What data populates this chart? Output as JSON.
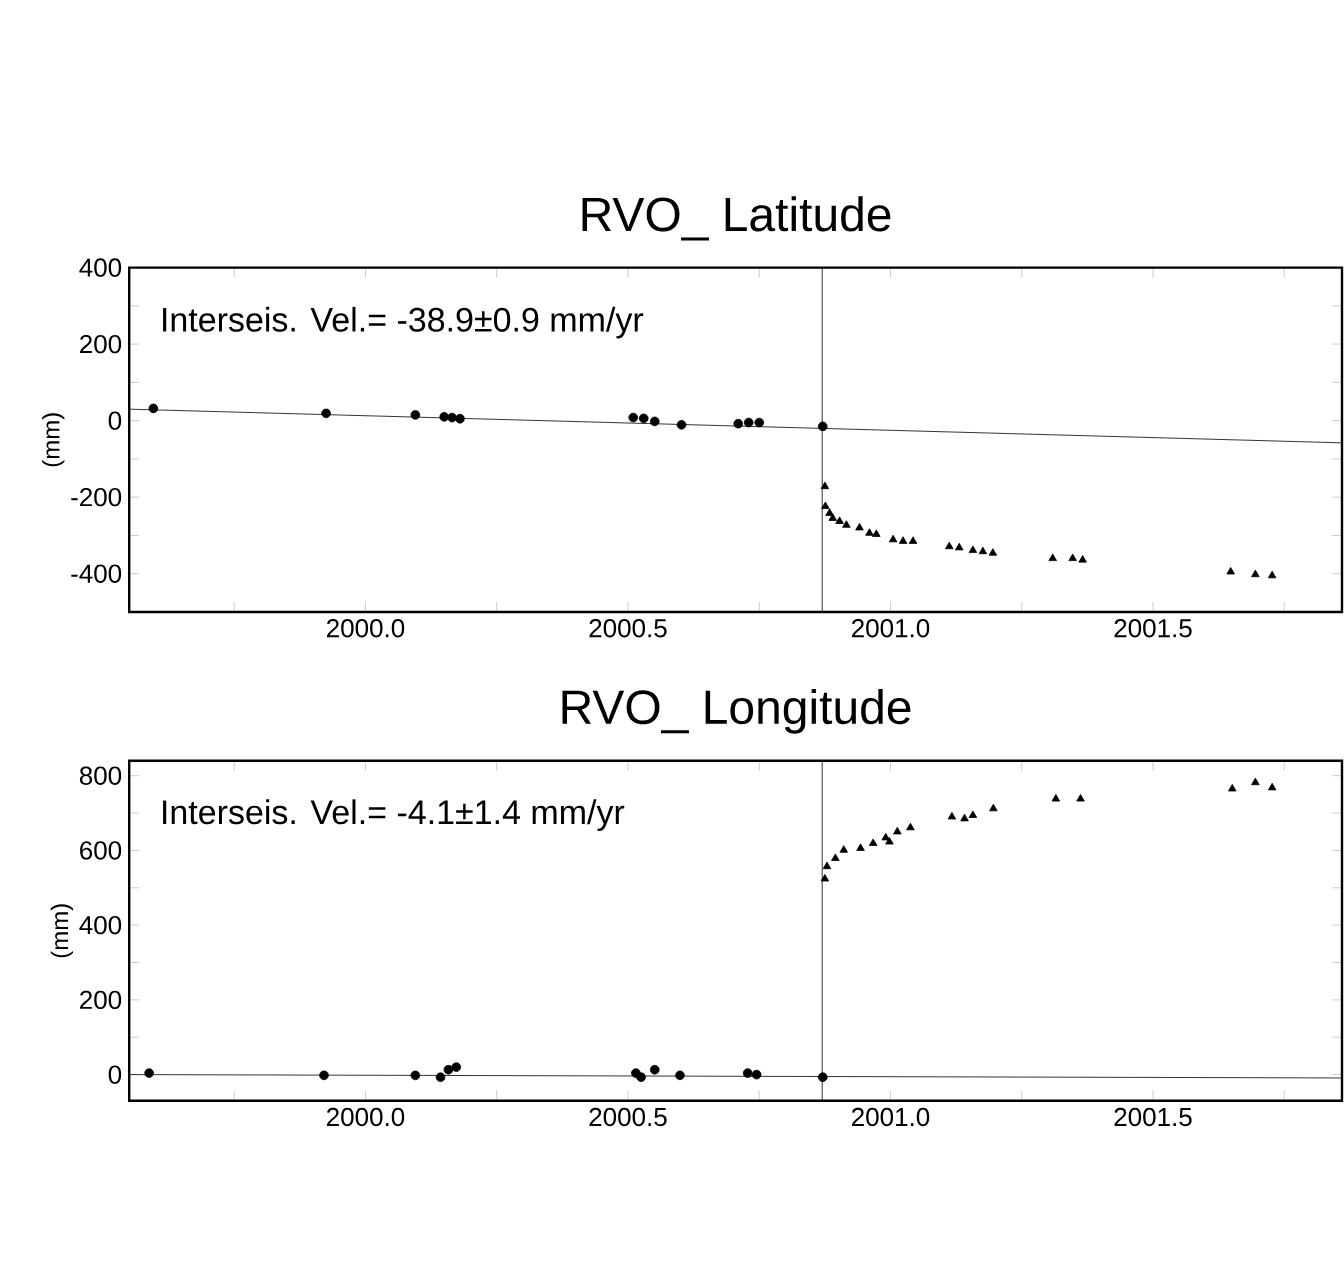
{
  "chart_data": [
    {
      "type": "scatter",
      "title": "RVO_  Latitude",
      "ylabel": "(mm)",
      "annotations": [
        "Interseis. Vel.= -38.9±0.9 mm/yr"
      ],
      "xlim": [
        1999.55,
        2001.86
      ],
      "ylim": [
        -500,
        400
      ],
      "xticks": [
        {
          "value": 1999.75,
          "label": null
        },
        {
          "value": 2000.0,
          "label": "2000.0"
        },
        {
          "value": 2000.25,
          "label": null
        },
        {
          "value": 2000.5,
          "label": "2000.5"
        },
        {
          "value": 2000.75,
          "label": null
        },
        {
          "value": 2001.0,
          "label": "2001.0"
        },
        {
          "value": 2001.25,
          "label": null
        },
        {
          "value": 2001.5,
          "label": "2001.5"
        },
        {
          "value": 2001.75,
          "label": null
        }
      ],
      "yticks": [
        {
          "value": -500,
          "label": null
        },
        -400,
        {
          "value": -300,
          "label": null
        },
        -200,
        {
          "value": -100,
          "label": null
        },
        0,
        {
          "value": 100,
          "label": null
        },
        200,
        {
          "value": 300,
          "label": null
        },
        400
      ],
      "ref_lines": [
        {
          "axis": "x",
          "value": 2000.87
        }
      ],
      "series": [
        {
          "color": "#000000",
          "marker": "circle",
          "x": [
            1999.596,
            1999.925,
            2000.095,
            2000.15,
            2000.165,
            2000.18,
            2000.51,
            2000.53,
            2000.551,
            2000.602,
            2000.71,
            2000.73,
            2000.75,
            2000.871
          ],
          "values": [
            32,
            19,
            15,
            10,
            8,
            5,
            8,
            6,
            -2,
            -11,
            -8,
            -5,
            -5,
            -15
          ]
        },
        {
          "color": "#000000",
          "marker": "triangle",
          "x": [
            2000.875,
            2000.876,
            2000.884,
            2000.89,
            2000.903,
            2000.916,
            2000.941,
            2000.96,
            2000.973,
            2001.005,
            2001.024,
            2001.043,
            2001.112,
            2001.131,
            2001.157,
            2001.176,
            2001.195,
            2001.309,
            2001.347,
            2001.366,
            2001.648,
            2001.695,
            2001.727
          ],
          "values": [
            -172,
            -224,
            -242,
            -255,
            -263,
            -273,
            -280,
            -294,
            -297,
            -311,
            -315,
            -315,
            -329,
            -332,
            -339,
            -342,
            -346,
            -360,
            -360,
            -364,
            -395,
            -402,
            -405
          ]
        },
        {
          "type": "line",
          "color": "#000000",
          "marker": "none",
          "x": [
            1999.55,
            2001.86
          ],
          "values": [
            30,
            -58
          ]
        }
      ]
    },
    {
      "type": "scatter",
      "title": "RVO_  Longitude",
      "ylabel": "(mm)",
      "annotations": [
        "Interseis. Vel.=  -4.1±1.4 mm/yr"
      ],
      "xlim": [
        1999.55,
        2001.86
      ],
      "ylim": [
        -70,
        840
      ],
      "xticks": [
        {
          "value": 1999.75,
          "label": null
        },
        {
          "value": 2000.0,
          "label": "2000.0"
        },
        {
          "value": 2000.25,
          "label": null
        },
        {
          "value": 2000.5,
          "label": "2000.5"
        },
        {
          "value": 2000.75,
          "label": null
        },
        {
          "value": 2001.0,
          "label": "2001.0"
        },
        {
          "value": 2001.25,
          "label": null
        },
        {
          "value": 2001.5,
          "label": "2001.5"
        },
        {
          "value": 2001.75,
          "label": null
        }
      ],
      "yticks": [
        0,
        {
          "value": 100,
          "label": null
        },
        200,
        {
          "value": 300,
          "label": null
        },
        400,
        {
          "value": 500,
          "label": null
        },
        600,
        {
          "value": 700,
          "label": null
        },
        800
      ],
      "ref_lines": [
        {
          "axis": "x",
          "value": 2000.87
        }
      ],
      "series": [
        {
          "color": "#000000",
          "marker": "circle",
          "x": [
            1999.588,
            1999.921,
            2000.095,
            2000.143,
            2000.158,
            2000.173,
            2000.515,
            2000.525,
            2000.551,
            2000.599,
            2000.728,
            2000.745,
            2000.871
          ],
          "values": [
            4,
            -2,
            -2,
            -7,
            13,
            20,
            4,
            -7,
            13,
            -2,
            4,
            0,
            -7
          ]
        },
        {
          "color": "#000000",
          "marker": "triangle",
          "x": [
            2000.875,
            2000.879,
            2000.895,
            2000.911,
            2000.943,
            2000.967,
            2000.991,
            2000.998,
            2001.013,
            2001.038,
            2001.117,
            2001.141,
            2001.157,
            2001.196,
            2001.315,
            2001.362,
            2001.651,
            2001.695,
            2001.727
          ],
          "values": [
            524,
            557,
            579,
            601,
            606,
            619,
            634,
            623,
            650,
            661,
            690,
            685,
            694,
            712,
            738,
            738,
            765,
            782,
            768
          ]
        },
        {
          "type": "line",
          "color": "#000000",
          "marker": "none",
          "x": [
            1999.55,
            2001.86
          ],
          "values": [
            0,
            -9
          ]
        }
      ]
    }
  ]
}
